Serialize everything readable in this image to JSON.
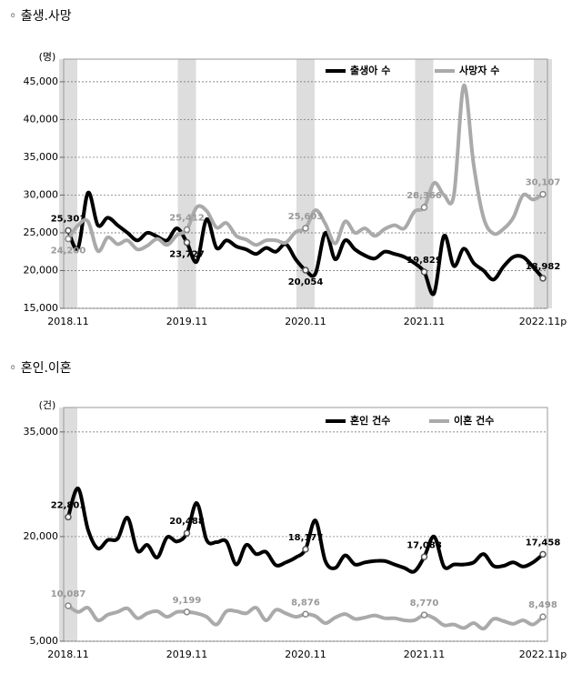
{
  "chart_data": [
    {
      "type": "line",
      "title": "◦ 출생.사망",
      "y_unit": "(명)",
      "categories": [
        "2018.11",
        null,
        null,
        null,
        null,
        null,
        null,
        null,
        null,
        null,
        null,
        null,
        "2019.11",
        null,
        null,
        null,
        null,
        null,
        null,
        null,
        null,
        null,
        null,
        null,
        "2020.11",
        null,
        null,
        null,
        null,
        null,
        null,
        null,
        null,
        null,
        null,
        null,
        "2021.11",
        null,
        null,
        null,
        null,
        null,
        null,
        null,
        null,
        null,
        null,
        null,
        "2022.11p"
      ],
      "series": [
        {
          "name": "출생아 수",
          "color": "#000000",
          "values": [
            25301,
            23000,
            30300,
            26000,
            27000,
            26000,
            25000,
            24000,
            25000,
            24500,
            24000,
            25600,
            23727,
            21200,
            26800,
            23000,
            24000,
            23200,
            22800,
            22200,
            23000,
            22500,
            23500,
            21500,
            20054,
            19600,
            25000,
            21500,
            24000,
            22800,
            22000,
            21600,
            22500,
            22200,
            21800,
            21000,
            19829,
            17000,
            24600,
            20600,
            22900,
            21000,
            20000,
            18800,
            20500,
            21800,
            21800,
            20500,
            18982
          ],
          "value_labels": [
            "25,301",
            null,
            null,
            null,
            null,
            null,
            null,
            null,
            null,
            null,
            null,
            null,
            "23,727",
            null,
            null,
            null,
            null,
            null,
            null,
            null,
            null,
            null,
            null,
            null,
            "20,054",
            null,
            null,
            null,
            null,
            null,
            null,
            null,
            null,
            null,
            null,
            null,
            "19,829",
            null,
            null,
            null,
            null,
            null,
            null,
            null,
            null,
            null,
            null,
            null,
            "18,982"
          ]
        },
        {
          "name": "사망자 수",
          "color": "#aaaaaa",
          "values": [
            24200,
            26000,
            26500,
            22600,
            24400,
            23500,
            24000,
            22800,
            23300,
            24200,
            23400,
            24700,
            25412,
            28400,
            27900,
            25700,
            26300,
            24600,
            24100,
            23400,
            24000,
            24000,
            23700,
            25100,
            25603,
            28000,
            26200,
            23600,
            26500,
            25000,
            25600,
            24600,
            25500,
            26000,
            25600,
            27800,
            28366,
            31600,
            30000,
            30000,
            44500,
            34000,
            27000,
            24900,
            25500,
            27000,
            30000,
            29400,
            30107
          ],
          "value_labels": [
            "24,200",
            null,
            null,
            null,
            null,
            null,
            null,
            null,
            null,
            null,
            null,
            null,
            "25,412",
            null,
            null,
            null,
            null,
            null,
            null,
            null,
            null,
            null,
            null,
            null,
            "25,603",
            null,
            null,
            null,
            null,
            null,
            null,
            null,
            null,
            null,
            null,
            null,
            "28,366",
            null,
            null,
            null,
            null,
            null,
            null,
            null,
            null,
            null,
            null,
            null,
            "30,107"
          ]
        }
      ],
      "ylim": [
        15000,
        48000
      ],
      "yticks": [
        {
          "value": 15000,
          "label": "15,000"
        },
        {
          "value": 20000,
          "label": "20,000"
        },
        {
          "value": 25000,
          "label": "25,000"
        },
        {
          "value": 30000,
          "label": "30,000"
        },
        {
          "value": 35000,
          "label": "35,000"
        },
        {
          "value": 40000,
          "label": "40,000"
        },
        {
          "value": 45000,
          "label": "45,000"
        }
      ],
      "grid": true,
      "legend": "top-right",
      "shade": [
        0,
        12,
        24,
        36,
        48
      ]
    },
    {
      "type": "line",
      "title": "◦ 혼인.이혼",
      "y_unit": "(건)",
      "categories": [
        "2018.11",
        null,
        null,
        null,
        null,
        null,
        null,
        null,
        null,
        null,
        null,
        null,
        "2019.11",
        null,
        null,
        null,
        null,
        null,
        null,
        null,
        null,
        null,
        null,
        null,
        "2020.11",
        null,
        null,
        null,
        null,
        null,
        null,
        null,
        null,
        null,
        null,
        null,
        "2021.11",
        null,
        null,
        null,
        null,
        null,
        null,
        null,
        null,
        null,
        null,
        null,
        "2022.11p"
      ],
      "series": [
        {
          "name": "혼인 건수",
          "color": "#000000",
          "values": [
            22801,
            26900,
            21000,
            18300,
            19500,
            19700,
            22700,
            18000,
            18800,
            17000,
            19900,
            19300,
            20488,
            24800,
            19500,
            19200,
            19300,
            16000,
            18800,
            17500,
            17800,
            15900,
            16300,
            17000,
            18177,
            22300,
            16500,
            15500,
            17300,
            16000,
            16300,
            16500,
            16500,
            16000,
            15500,
            15000,
            17088,
            20000,
            15700,
            16000,
            16000,
            16300,
            17500,
            15800,
            15800,
            16300,
            15700,
            16300,
            17458
          ],
          "value_labels": [
            "22,801",
            null,
            null,
            null,
            null,
            null,
            null,
            null,
            null,
            null,
            null,
            null,
            "20,488",
            null,
            null,
            null,
            null,
            null,
            null,
            null,
            null,
            null,
            null,
            null,
            "18,177",
            null,
            null,
            null,
            null,
            null,
            null,
            null,
            null,
            null,
            null,
            null,
            "17,088",
            null,
            null,
            null,
            null,
            null,
            null,
            null,
            null,
            null,
            null,
            null,
            "17,458"
          ]
        },
        {
          "name": "이혼 건수",
          "color": "#aaaaaa",
          "values": [
            10087,
            9200,
            9800,
            8000,
            8800,
            9200,
            9700,
            8300,
            9000,
            9300,
            8500,
            9200,
            9199,
            9000,
            8500,
            7400,
            9300,
            9300,
            9000,
            9800,
            8000,
            9500,
            9000,
            8500,
            8876,
            8600,
            7600,
            8400,
            8900,
            8200,
            8400,
            8700,
            8300,
            8300,
            8000,
            8000,
            8770,
            8300,
            7300,
            7400,
            6900,
            7600,
            6800,
            8200,
            7900,
            7500,
            8000,
            7400,
            8498
          ],
          "value_labels": [
            "10,087",
            null,
            null,
            null,
            null,
            null,
            null,
            null,
            null,
            null,
            null,
            null,
            "9,199",
            null,
            null,
            null,
            null,
            null,
            null,
            null,
            null,
            null,
            null,
            null,
            "8,876",
            null,
            null,
            null,
            null,
            null,
            null,
            null,
            null,
            null,
            null,
            null,
            "8,770",
            null,
            null,
            null,
            null,
            null,
            null,
            null,
            null,
            null,
            null,
            null,
            "8,498"
          ]
        }
      ],
      "ylim": [
        5000,
        38500
      ],
      "yticks": [
        {
          "value": 5000,
          "label": "5,000"
        },
        {
          "value": 20000,
          "label": "20,000"
        },
        {
          "value": 35000,
          "label": "35,000"
        }
      ],
      "grid": true,
      "legend": "top-right",
      "shade": [
        0
      ]
    }
  ]
}
